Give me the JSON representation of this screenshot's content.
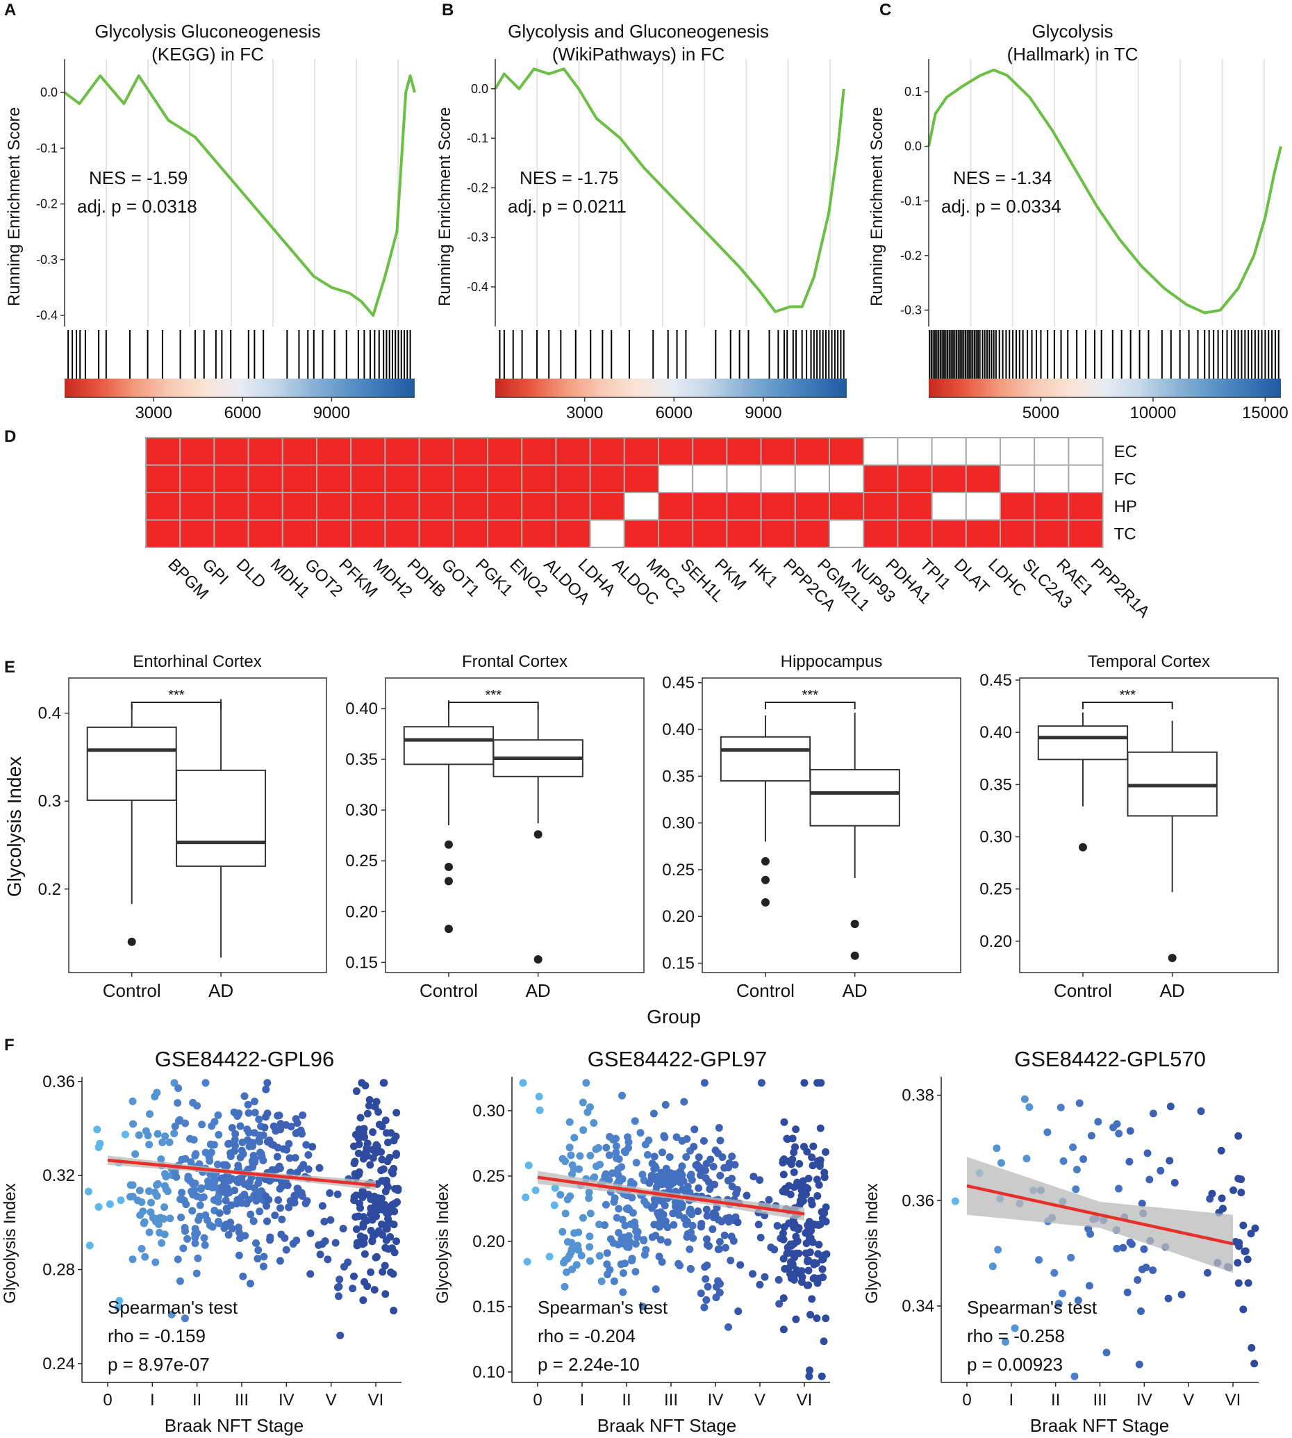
{
  "colors": {
    "gsea_line": "#6cbf45",
    "heat_on": "#ee2624",
    "heat_off": "#ffffff",
    "fit_line": "#e8302a",
    "ci_band": "#b9b9b9",
    "box_stroke": "#333333",
    "stage_colors": [
      "#5fb6ea",
      "#5494d2",
      "#4b7fca",
      "#4470c0",
      "#3d62b6",
      "#3656aa",
      "#2f4ba0"
    ]
  },
  "chart_data": [
    {
      "type": "line",
      "panel": "A",
      "title_lines": [
        "Glycolysis Gluconeogenesis",
        "(KEGG) in FC"
      ],
      "ylabel": "Running Enrichment Score",
      "ylim": [
        -0.42,
        0.06
      ],
      "yticks": [
        0.0,
        -0.1,
        -0.2,
        -0.3,
        -0.4
      ],
      "ytick_labels": [
        "0.0",
        "-0.1",
        "-0.2",
        "-0.3",
        "-0.4"
      ],
      "xlim": [
        0,
        11800
      ],
      "xticks": [
        3000,
        6000,
        9000
      ],
      "xtick_labels": [
        "3000",
        "6000",
        "9000"
      ],
      "nes_label": "NES = -1.59",
      "p_label": "adj. p = 0.0318",
      "curve": [
        [
          0,
          0
        ],
        [
          500,
          -0.02
        ],
        [
          1200,
          0.03
        ],
        [
          2000,
          -0.02
        ],
        [
          2500,
          0.03
        ],
        [
          3000,
          -0.01
        ],
        [
          3500,
          -0.05
        ],
        [
          4400,
          -0.08
        ],
        [
          5200,
          -0.13
        ],
        [
          6000,
          -0.18
        ],
        [
          6800,
          -0.23
        ],
        [
          7600,
          -0.28
        ],
        [
          8400,
          -0.33
        ],
        [
          9000,
          -0.35
        ],
        [
          9600,
          -0.36
        ],
        [
          10000,
          -0.375
        ],
        [
          10400,
          -0.4
        ],
        [
          10800,
          -0.33
        ],
        [
          11200,
          -0.25
        ],
        [
          11500,
          0.0
        ],
        [
          11650,
          0.03
        ],
        [
          11800,
          0.0
        ]
      ],
      "hits": [
        120,
        260,
        400,
        520,
        700,
        1150,
        1400,
        2200,
        2800,
        3300,
        3900,
        4400,
        4700,
        5100,
        5300,
        5600,
        6200,
        6400,
        6700,
        7500,
        7900,
        8200,
        8400,
        8700,
        9100,
        9500,
        9900,
        10100,
        10300,
        10450,
        10600,
        10750,
        10850,
        10950,
        11050,
        11150,
        11250,
        11350,
        11450,
        11550,
        11650
      ]
    },
    {
      "type": "line",
      "panel": "B",
      "title_lines": [
        "Glycolysis and Gluconeogenesis",
        "(WikiPathways) in FC"
      ],
      "ylabel": "Running Enrichment Score",
      "ylim": [
        -0.48,
        0.06
      ],
      "yticks": [
        0.0,
        -0.1,
        -0.2,
        -0.3,
        -0.4
      ],
      "ytick_labels": [
        "0.0",
        "-0.1",
        "-0.2",
        "-0.3",
        "-0.4"
      ],
      "xlim": [
        0,
        11800
      ],
      "xticks": [
        3000,
        6000,
        9000
      ],
      "xtick_labels": [
        "3000",
        "6000",
        "9000"
      ],
      "nes_label": "NES = -1.75",
      "p_label": "adj. p = 0.0211",
      "curve": [
        [
          0,
          0
        ],
        [
          300,
          0.03
        ],
        [
          800,
          0.0
        ],
        [
          1300,
          0.04
        ],
        [
          1800,
          0.03
        ],
        [
          2300,
          0.04
        ],
        [
          2800,
          0.0
        ],
        [
          3400,
          -0.06
        ],
        [
          4200,
          -0.1
        ],
        [
          5000,
          -0.16
        ],
        [
          5800,
          -0.21
        ],
        [
          6600,
          -0.26
        ],
        [
          7400,
          -0.31
        ],
        [
          8200,
          -0.36
        ],
        [
          8900,
          -0.41
        ],
        [
          9400,
          -0.45
        ],
        [
          9900,
          -0.44
        ],
        [
          10300,
          -0.44
        ],
        [
          10700,
          -0.38
        ],
        [
          11200,
          -0.25
        ],
        [
          11500,
          -0.12
        ],
        [
          11700,
          0.0
        ]
      ],
      "hits": [
        150,
        300,
        600,
        900,
        1400,
        1800,
        2200,
        2700,
        3200,
        3600,
        3900,
        4500,
        5300,
        5800,
        6100,
        6400,
        7400,
        7900,
        8200,
        8500,
        9200,
        9500,
        9700,
        9800,
        10000,
        10100,
        10300,
        10450,
        10600,
        10700,
        10800,
        10900,
        11000,
        11100,
        11200,
        11300,
        11400,
        11500,
        11600,
        11700
      ]
    },
    {
      "type": "line",
      "panel": "C",
      "title_lines": [
        "Glycolysis",
        "(Hallmark) in TC"
      ],
      "ylabel": "Running Enrichment Score",
      "ylim": [
        -0.33,
        0.16
      ],
      "yticks": [
        0.1,
        0.0,
        -0.1,
        -0.2,
        -0.3
      ],
      "ytick_labels": [
        "0.1",
        "0.0",
        "-0.1",
        "-0.2",
        "-0.3"
      ],
      "xlim": [
        0,
        15700
      ],
      "xticks": [
        5000,
        10000,
        15000
      ],
      "xtick_labels": [
        "5000",
        "10000",
        "15000"
      ],
      "nes_label": "NES = -1.34",
      "p_label": "adj. p = 0.0334",
      "curve": [
        [
          0,
          0.0
        ],
        [
          300,
          0.06
        ],
        [
          800,
          0.09
        ],
        [
          1500,
          0.11
        ],
        [
          2300,
          0.13
        ],
        [
          2900,
          0.14
        ],
        [
          3500,
          0.13
        ],
        [
          4500,
          0.09
        ],
        [
          5500,
          0.03
        ],
        [
          6500,
          -0.04
        ],
        [
          7500,
          -0.11
        ],
        [
          8500,
          -0.17
        ],
        [
          9500,
          -0.22
        ],
        [
          10500,
          -0.26
        ],
        [
          11500,
          -0.29
        ],
        [
          12300,
          -0.305
        ],
        [
          13000,
          -0.3
        ],
        [
          13800,
          -0.26
        ],
        [
          14500,
          -0.2
        ],
        [
          15000,
          -0.13
        ],
        [
          15400,
          -0.05
        ],
        [
          15700,
          0.0
        ]
      ],
      "hits": [
        40,
        120,
        200,
        280,
        360,
        440,
        520,
        600,
        680,
        760,
        840,
        920,
        1000,
        1080,
        1160,
        1240,
        1320,
        1400,
        1480,
        1560,
        1640,
        1720,
        1800,
        1880,
        1960,
        2040,
        2120,
        2200,
        2280,
        2400,
        2500,
        2600,
        2700,
        2800,
        2900,
        3000,
        3150,
        3300,
        3450,
        3600,
        3750,
        3900,
        4050,
        4200,
        4400,
        4600,
        4800,
        5000,
        5300,
        5600,
        5900,
        6200,
        6600,
        7000,
        7400,
        7700,
        8200,
        8600,
        9000,
        9400,
        9800,
        10400,
        10800,
        11200,
        11600,
        12000,
        12300,
        12500,
        12700,
        12900,
        13100,
        13300,
        13500,
        13650,
        13800,
        13950,
        14100,
        14250,
        14400,
        14550,
        14700,
        14850,
        15000,
        15150,
        15300,
        15450,
        15600
      ]
    },
    {
      "type": "heatmap",
      "panel": "D",
      "rows": [
        "EC",
        "FC",
        "HP",
        "TC"
      ],
      "columns": [
        "BPGM",
        "GPI",
        "DLD",
        "MDH1",
        "GOT2",
        "PFKM",
        "MDH2",
        "PDHB",
        "GOT1",
        "PGK1",
        "ENO2",
        "ALDOA",
        "LDHA",
        "ALDOC",
        "MPC2",
        "SEH1L",
        "PKM",
        "HK1",
        "PPP2CA",
        "PGM2L1",
        "NUP93",
        "PDHA1",
        "TPI1",
        "DLAT",
        "LDHC",
        "SLC2A3",
        "RAE1",
        "PPP2R1A"
      ],
      "values": [
        [
          1,
          1,
          1,
          1,
          1,
          1,
          1,
          1,
          1,
          1,
          1,
          1,
          1,
          1,
          1,
          1,
          1,
          1,
          1,
          1,
          1,
          0,
          0,
          0,
          0,
          0,
          0,
          0
        ],
        [
          1,
          1,
          1,
          1,
          1,
          1,
          1,
          1,
          1,
          1,
          1,
          1,
          1,
          1,
          1,
          0,
          0,
          0,
          0,
          0,
          0,
          1,
          1,
          1,
          1,
          0,
          0,
          0
        ],
        [
          1,
          1,
          1,
          1,
          1,
          1,
          1,
          1,
          1,
          1,
          1,
          1,
          1,
          1,
          0,
          1,
          1,
          1,
          1,
          1,
          1,
          1,
          1,
          0,
          0,
          1,
          1,
          1
        ],
        [
          1,
          1,
          1,
          1,
          1,
          1,
          1,
          1,
          1,
          1,
          1,
          1,
          1,
          0,
          1,
          1,
          1,
          1,
          1,
          1,
          0,
          1,
          1,
          1,
          1,
          1,
          1,
          1
        ]
      ]
    },
    {
      "type": "box",
      "panel": "E",
      "ylabel": "Glycolysis Index",
      "xlabel": "Group",
      "signif": "***",
      "panels": [
        {
          "title": "Entorhinal Cortex",
          "ylim": [
            0.105,
            0.44
          ],
          "yticks": [
            0.2,
            0.3,
            0.4
          ],
          "ytick_labels": [
            "0.2",
            "0.3",
            "0.4"
          ],
          "groups": [
            {
              "name": "Control",
              "min": 0.183,
              "q1": 0.301,
              "median": 0.358,
              "q3": 0.384,
              "max": 0.41,
              "outliers": [
                0.14
              ]
            },
            {
              "name": "AD",
              "min": 0.122,
              "q1": 0.226,
              "median": 0.253,
              "q3": 0.335,
              "max": 0.416,
              "outliers": []
            }
          ]
        },
        {
          "title": "Frontal Cortex",
          "ylim": [
            0.14,
            0.43
          ],
          "yticks": [
            0.15,
            0.2,
            0.25,
            0.3,
            0.35,
            0.4
          ],
          "ytick_labels": [
            "0.15",
            "0.20",
            "0.25",
            "0.30",
            "0.35",
            "0.40"
          ],
          "groups": [
            {
              "name": "Control",
              "min": 0.285,
              "q1": 0.345,
              "median": 0.369,
              "q3": 0.382,
              "max": 0.408,
              "outliers": [
                0.266,
                0.244,
                0.23,
                0.183
              ]
            },
            {
              "name": "AD",
              "min": 0.287,
              "q1": 0.333,
              "median": 0.351,
              "q3": 0.369,
              "max": 0.403,
              "outliers": [
                0.276,
                0.153
              ]
            }
          ]
        },
        {
          "title": "Hippocampus",
          "ylim": [
            0.14,
            0.455
          ],
          "yticks": [
            0.15,
            0.2,
            0.25,
            0.3,
            0.35,
            0.4,
            0.45
          ],
          "ytick_labels": [
            "0.15",
            "0.20",
            "0.25",
            "0.30",
            "0.35",
            "0.40",
            "0.45"
          ],
          "groups": [
            {
              "name": "Control",
              "min": 0.28,
              "q1": 0.345,
              "median": 0.378,
              "q3": 0.392,
              "max": 0.415,
              "outliers": [
                0.259,
                0.239,
                0.215
              ]
            },
            {
              "name": "AD",
              "min": 0.241,
              "q1": 0.297,
              "median": 0.332,
              "q3": 0.357,
              "max": 0.418,
              "outliers": [
                0.192,
                0.158
              ]
            }
          ]
        },
        {
          "title": "Temporal Cortex",
          "ylim": [
            0.17,
            0.452
          ],
          "yticks": [
            0.2,
            0.25,
            0.3,
            0.35,
            0.4,
            0.45
          ],
          "ytick_labels": [
            "0.20",
            "0.25",
            "0.30",
            "0.35",
            "0.40",
            "0.45"
          ],
          "groups": [
            {
              "name": "Control",
              "min": 0.329,
              "q1": 0.374,
              "median": 0.395,
              "q3": 0.406,
              "max": 0.419,
              "outliers": [
                0.29
              ]
            },
            {
              "name": "AD",
              "min": 0.247,
              "q1": 0.32,
              "median": 0.349,
              "q3": 0.381,
              "max": 0.411,
              "outliers": [
                0.184
              ]
            }
          ]
        }
      ]
    },
    {
      "type": "scatter",
      "panel": "F",
      "ylabel": "Glycolysis Index",
      "xlabel": "Braak NFT Stage",
      "stage_labels": [
        "0",
        "I",
        "II",
        "III",
        "IV",
        "V",
        "VI"
      ],
      "panels": [
        {
          "title": "GSE84422-GPL96",
          "ylim": [
            0.232,
            0.362
          ],
          "yticks": [
            0.24,
            0.28,
            0.32,
            0.36
          ],
          "ytick_labels": [
            "0.24",
            "0.28",
            "0.32",
            "0.36"
          ],
          "counts": [
            12,
            60,
            100,
            120,
            90,
            25,
            160
          ],
          "stage_stats": [
            [
              0.32,
              0.025
            ],
            [
              0.315,
              0.02
            ],
            [
              0.313,
              0.018
            ],
            [
              0.318,
              0.016
            ],
            [
              0.32,
              0.017
            ],
            [
              0.3,
              0.018
            ],
            [
              0.312,
              0.02
            ]
          ],
          "fit": [
            0.3265,
            0.3158
          ],
          "band": 0.002,
          "test_label": "Spearman's test",
          "rho_label": "rho = -0.159",
          "p_label": "p = 8.97e-07"
        },
        {
          "title": "GSE84422-GPL97",
          "ylim": [
            0.092,
            0.326
          ],
          "yticks": [
            0.1,
            0.15,
            0.2,
            0.25,
            0.3
          ],
          "ytick_labels": [
            "0.10",
            "0.15",
            "0.20",
            "0.25",
            "0.30"
          ],
          "counts": [
            10,
            60,
            100,
            120,
            90,
            25,
            160
          ],
          "stage_stats": [
            [
              0.235,
              0.04
            ],
            [
              0.235,
              0.035
            ],
            [
              0.23,
              0.035
            ],
            [
              0.235,
              0.03
            ],
            [
              0.23,
              0.035
            ],
            [
              0.2,
              0.04
            ],
            [
              0.21,
              0.045
            ]
          ],
          "fit": [
            0.249,
            0.221
          ],
          "band": 0.005,
          "test_label": "Spearman's test",
          "rho_label": "rho = -0.204",
          "p_label": "p = 2.24e-10"
        },
        {
          "title": "GSE84422-GPL570",
          "ylim": [
            0.3255,
            0.3835
          ],
          "yticks": [
            0.34,
            0.36,
            0.38
          ],
          "ytick_labels": [
            "0.34",
            "0.36",
            "0.38"
          ],
          "counts": [
            2,
            12,
            16,
            18,
            22,
            8,
            28
          ],
          "stage_stats": [
            [
              0.362,
              0.004
            ],
            [
              0.36,
              0.012
            ],
            [
              0.358,
              0.011
            ],
            [
              0.36,
              0.01
            ],
            [
              0.358,
              0.011
            ],
            [
              0.355,
              0.01
            ],
            [
              0.352,
              0.012
            ]
          ],
          "fit": [
            0.3628,
            0.3518
          ],
          "band": 0.0055,
          "test_label": "Spearman's test",
          "rho_label": "rho = -0.258",
          "p_label": "p = 0.00923"
        }
      ]
    }
  ]
}
